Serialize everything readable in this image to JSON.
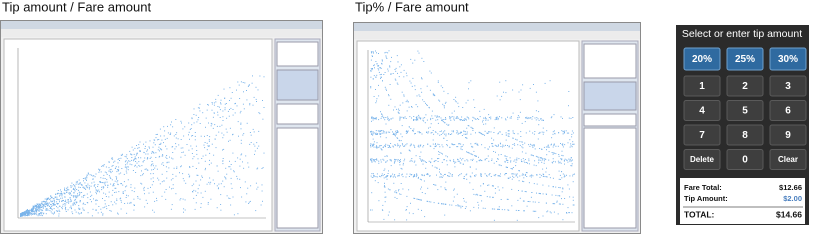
{
  "panels": [
    {
      "title": "Tip amount / Fare amount"
    },
    {
      "title": "Tip% / Fare amount"
    }
  ],
  "keypad": {
    "title": "Select or enter tip amount",
    "presets": [
      "20%",
      "25%",
      "30%"
    ],
    "keys": [
      "1",
      "2",
      "3",
      "4",
      "5",
      "6",
      "7",
      "8",
      "9",
      "Delete",
      "0",
      "Clear"
    ],
    "summary": [
      {
        "label": "Fare Total:",
        "value": "$12.66"
      },
      {
        "label": "Tip Amount:",
        "value": "$2.00"
      },
      {
        "label": "TOTAL:",
        "value": "$14.66"
      }
    ]
  }
}
